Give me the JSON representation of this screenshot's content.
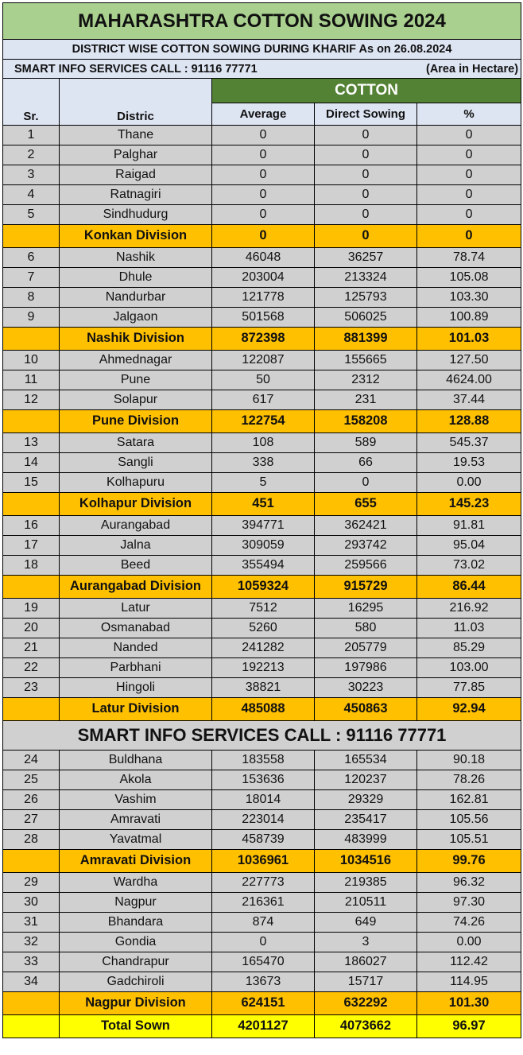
{
  "title": "MAHARASHTRA COTTON SOWING 2024",
  "subtitle": "DISTRICT WISE COTTON SOWING DURING KHARIF  As on 26.08.2024",
  "info_left": "SMART INFO SERVICES CALL : 91116 77771",
  "info_right": "(Area in Hectare)",
  "group_header": "COTTON",
  "columns": {
    "sr": "Sr.",
    "district": "Distric",
    "average": "Average",
    "direct": "Direct Sowing",
    "pct": "%"
  },
  "banner": "SMART INFO SERVICES CALL : 91116 77771",
  "colors": {
    "title_bg": "#a9d08e",
    "header_bg": "#dde4f2",
    "cotton_bg": "#548235",
    "row_bg": "#d0d0d0",
    "division_bg": "#ffc000",
    "total_bg": "#ffff00"
  },
  "rows": [
    {
      "type": "district",
      "sr": "1",
      "name": "Thane",
      "avg": "0",
      "direct": "0",
      "pct": "0"
    },
    {
      "type": "district",
      "sr": "2",
      "name": "Palghar",
      "avg": "0",
      "direct": "0",
      "pct": "0"
    },
    {
      "type": "district",
      "sr": "3",
      "name": "Raigad",
      "avg": "0",
      "direct": "0",
      "pct": "0"
    },
    {
      "type": "district",
      "sr": "4",
      "name": "Ratnagiri",
      "avg": "0",
      "direct": "0",
      "pct": "0"
    },
    {
      "type": "district",
      "sr": "5",
      "name": "Sindhudurg",
      "avg": "0",
      "direct": "0",
      "pct": "0"
    },
    {
      "type": "division",
      "sr": "",
      "name": "Konkan Division",
      "avg": "0",
      "direct": "0",
      "pct": "0"
    },
    {
      "type": "district",
      "sr": "6",
      "name": "Nashik",
      "avg": "46048",
      "direct": "36257",
      "pct": "78.74"
    },
    {
      "type": "district",
      "sr": "7",
      "name": "Dhule",
      "avg": "203004",
      "direct": "213324",
      "pct": "105.08"
    },
    {
      "type": "district",
      "sr": "8",
      "name": "Nandurbar",
      "avg": "121778",
      "direct": "125793",
      "pct": "103.30"
    },
    {
      "type": "district",
      "sr": "9",
      "name": "Jalgaon",
      "avg": "501568",
      "direct": "506025",
      "pct": "100.89"
    },
    {
      "type": "division",
      "sr": "",
      "name": "Nashik Division",
      "avg": "872398",
      "direct": "881399",
      "pct": "101.03"
    },
    {
      "type": "district",
      "sr": "10",
      "name": "Ahmednagar",
      "avg": "122087",
      "direct": "155665",
      "pct": "127.50"
    },
    {
      "type": "district",
      "sr": "11",
      "name": "Pune",
      "avg": "50",
      "direct": "2312",
      "pct": "4624.00"
    },
    {
      "type": "district",
      "sr": "12",
      "name": "Solapur",
      "avg": "617",
      "direct": "231",
      "pct": "37.44"
    },
    {
      "type": "division",
      "sr": "",
      "name": "Pune Division",
      "avg": "122754",
      "direct": "158208",
      "pct": "128.88"
    },
    {
      "type": "district",
      "sr": "13",
      "name": "Satara",
      "avg": "108",
      "direct": "589",
      "pct": "545.37"
    },
    {
      "type": "district",
      "sr": "14",
      "name": "Sangli",
      "avg": "338",
      "direct": "66",
      "pct": "19.53"
    },
    {
      "type": "district",
      "sr": "15",
      "name": "Kolhapuru",
      "avg": "5",
      "direct": "0",
      "pct": "0.00"
    },
    {
      "type": "division",
      "sr": "",
      "name": "Kolhapur Division",
      "avg": "451",
      "direct": "655",
      "pct": "145.23"
    },
    {
      "type": "district",
      "sr": "16",
      "name": "Aurangabad",
      "avg": "394771",
      "direct": "362421",
      "pct": "91.81"
    },
    {
      "type": "district",
      "sr": "17",
      "name": "Jalna",
      "avg": "309059",
      "direct": "293742",
      "pct": "95.04"
    },
    {
      "type": "district",
      "sr": "18",
      "name": "Beed",
      "avg": "355494",
      "direct": "259566",
      "pct": "73.02"
    },
    {
      "type": "division",
      "sr": "",
      "name": "Aurangabad Division",
      "avg": "1059324",
      "direct": "915729",
      "pct": "86.44"
    },
    {
      "type": "district",
      "sr": "19",
      "name": "Latur",
      "avg": "7512",
      "direct": "16295",
      "pct": "216.92"
    },
    {
      "type": "district",
      "sr": "20",
      "name": "Osmanabad",
      "avg": "5260",
      "direct": "580",
      "pct": "11.03"
    },
    {
      "type": "district",
      "sr": "21",
      "name": "Nanded",
      "avg": "241282",
      "direct": "205779",
      "pct": "85.29"
    },
    {
      "type": "district",
      "sr": "22",
      "name": "Parbhani",
      "avg": "192213",
      "direct": "197986",
      "pct": "103.00"
    },
    {
      "type": "district",
      "sr": "23",
      "name": "Hingoli",
      "avg": "38821",
      "direct": "30223",
      "pct": "77.85"
    },
    {
      "type": "division",
      "sr": "",
      "name": "Latur Division",
      "avg": "485088",
      "direct": "450863",
      "pct": "92.94"
    },
    {
      "type": "banner"
    },
    {
      "type": "district",
      "sr": "24",
      "name": "Buldhana",
      "avg": "183558",
      "direct": "165534",
      "pct": "90.18"
    },
    {
      "type": "district",
      "sr": "25",
      "name": "Akola",
      "avg": "153636",
      "direct": "120237",
      "pct": "78.26"
    },
    {
      "type": "district",
      "sr": "26",
      "name": "Vashim",
      "avg": "18014",
      "direct": "29329",
      "pct": "162.81"
    },
    {
      "type": "district",
      "sr": "27",
      "name": "Amravati",
      "avg": "223014",
      "direct": "235417",
      "pct": "105.56"
    },
    {
      "type": "district",
      "sr": "28",
      "name": "Yavatmal",
      "avg": "458739",
      "direct": "483999",
      "pct": "105.51"
    },
    {
      "type": "division",
      "sr": "",
      "name": "Amravati Division",
      "avg": "1036961",
      "direct": "1034516",
      "pct": "99.76"
    },
    {
      "type": "district",
      "sr": "29",
      "name": "Wardha",
      "avg": "227773",
      "direct": "219385",
      "pct": "96.32"
    },
    {
      "type": "district",
      "sr": "30",
      "name": "Nagpur",
      "avg": "216361",
      "direct": "210511",
      "pct": "97.30"
    },
    {
      "type": "district",
      "sr": "31",
      "name": "Bhandara",
      "avg": "874",
      "direct": "649",
      "pct": "74.26"
    },
    {
      "type": "district",
      "sr": "32",
      "name": "Gondia",
      "avg": "0",
      "direct": "3",
      "pct": "0.00"
    },
    {
      "type": "district",
      "sr": "33",
      "name": "Chandrapur",
      "avg": "165470",
      "direct": "186027",
      "pct": "112.42"
    },
    {
      "type": "district",
      "sr": "34",
      "name": "Gadchiroli",
      "avg": "13673",
      "direct": "15717",
      "pct": "114.95"
    },
    {
      "type": "division",
      "sr": "",
      "name": "Nagpur Division",
      "avg": "624151",
      "direct": "632292",
      "pct": "101.30"
    },
    {
      "type": "total",
      "sr": "",
      "name": "Total Sown",
      "avg": "4201127",
      "direct": "4073662",
      "pct": "96.97"
    }
  ]
}
